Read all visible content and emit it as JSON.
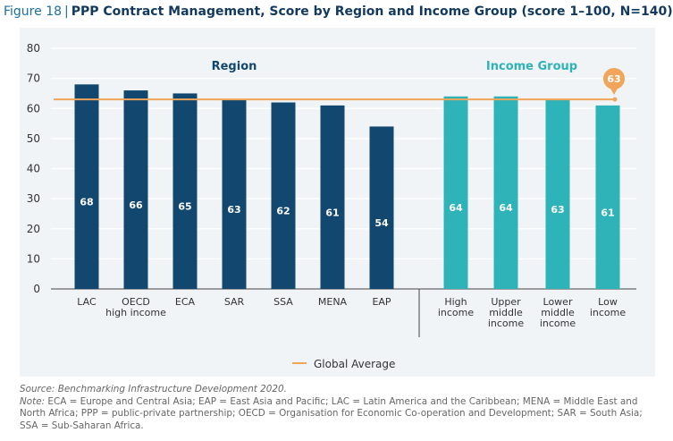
{
  "figure": {
    "label": "Figure 18",
    "separator": "|",
    "title": "PPP Contract Management, Score by Region and Income Group (score 1–100, N=140)"
  },
  "chart_data": {
    "type": "bar",
    "ylim": [
      0,
      80
    ],
    "yticks": [
      "0",
      "10",
      "20",
      "30",
      "40",
      "50",
      "60",
      "70",
      "80"
    ],
    "grid": true,
    "groups": [
      {
        "label": "Region",
        "color": "#12486f",
        "categories": [
          [
            "LAC"
          ],
          [
            "OECD",
            "high income"
          ],
          [
            "ECA"
          ],
          [
            "SAR"
          ],
          [
            "SSA"
          ],
          [
            "MENA"
          ],
          [
            "EAP"
          ]
        ],
        "values": [
          68,
          66,
          65,
          63,
          62,
          61,
          54
        ],
        "value_labels": [
          "68",
          "66",
          "65",
          "63",
          "62",
          "61",
          "54"
        ]
      },
      {
        "label": "Income Group",
        "color": "#2eb3b8",
        "categories": [
          [
            "High",
            "income"
          ],
          [
            "Upper",
            "middle",
            "income"
          ],
          [
            "Lower",
            "middle",
            "income"
          ],
          [
            "Low",
            "income"
          ]
        ],
        "values": [
          64,
          64,
          63,
          61
        ],
        "value_labels": [
          "64",
          "64",
          "63",
          "61"
        ]
      }
    ],
    "reference_line": {
      "name": "Global Average",
      "value": 63,
      "label": "63",
      "color": "#f0a55a"
    },
    "legend": {
      "position": "bottom",
      "entries": [
        "Global Average"
      ]
    }
  },
  "notes": {
    "source": "Source: Benchmarking Infrastructure Development 2020.",
    "note_label": "Note:",
    "note_text": " ECA = Europe and Central Asia; EAP = East Asia and Pacific; LAC = Latin America and the Caribbean; MENA = Middle East and North Africa; PPP = public-private partnership; OECD = Organisation for Economic Co-operation and Development; SAR = South Asia; SSA = Sub-Saharan Africa."
  }
}
